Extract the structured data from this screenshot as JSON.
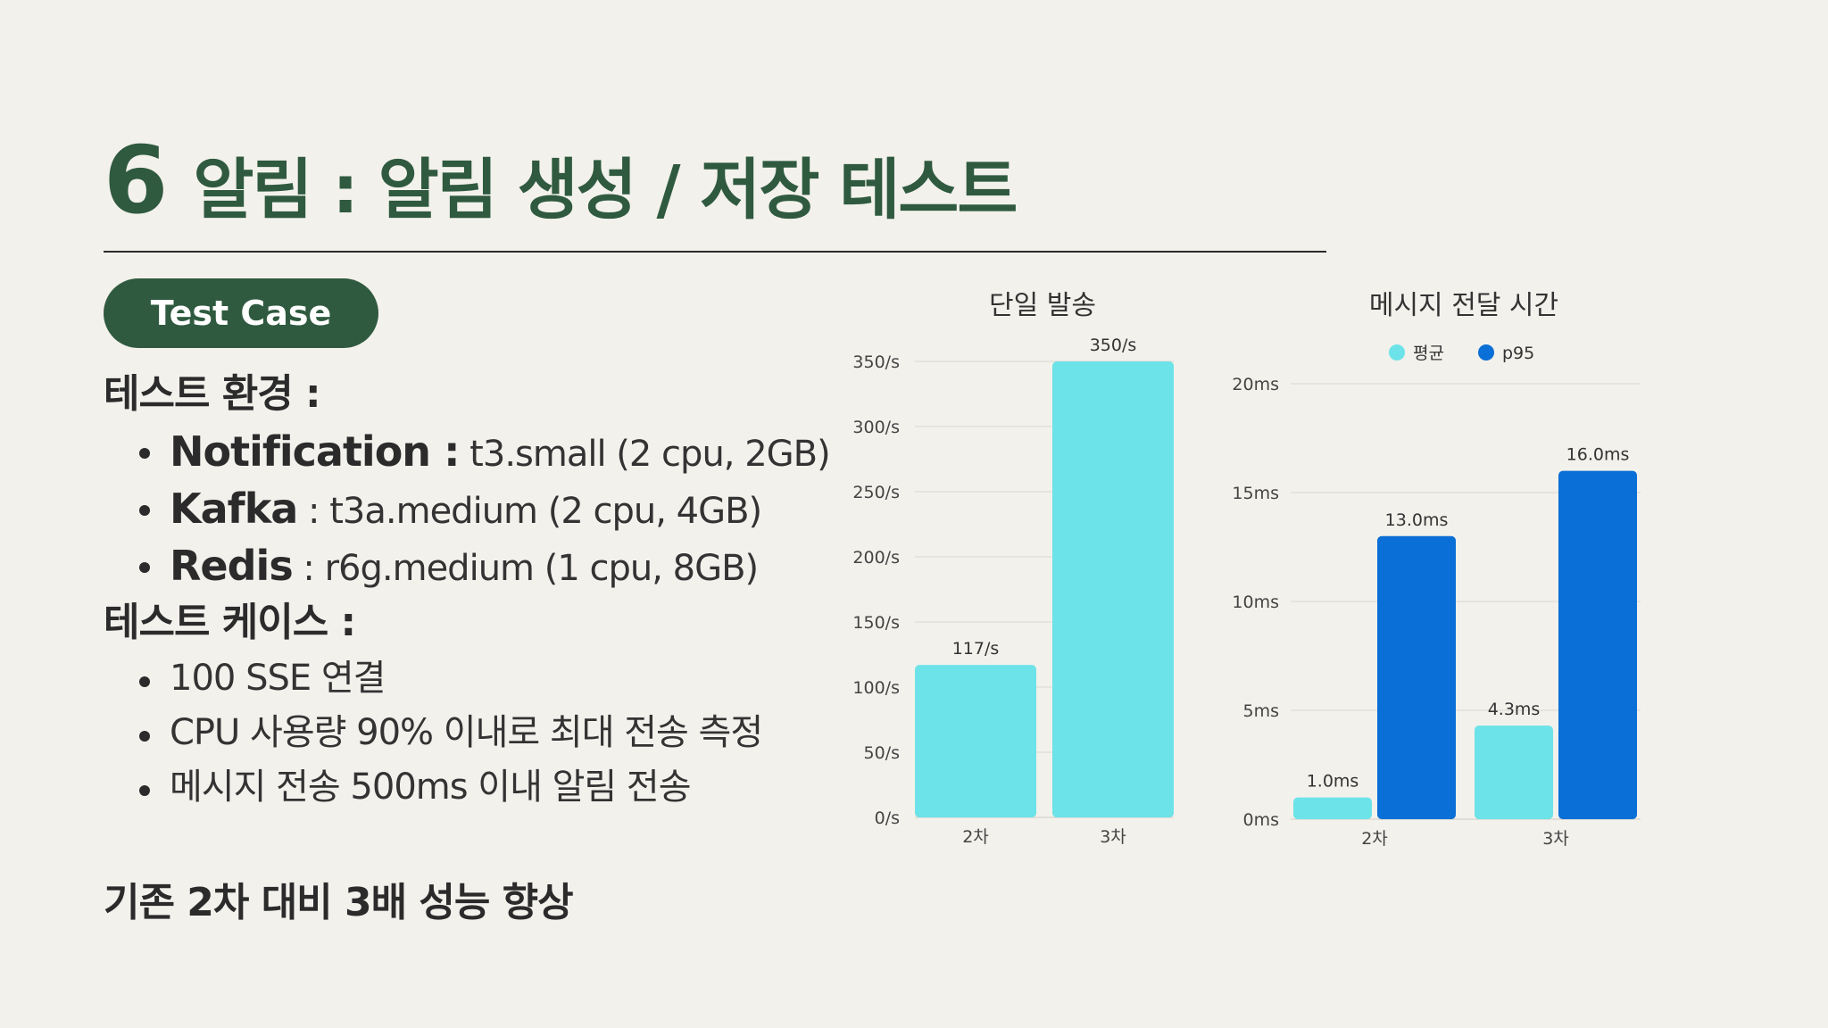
{
  "slide": {
    "number": "6",
    "title": "알림 : 알림 생성 / 저장 테스트",
    "badge": "Test Case",
    "env_heading": "테스트 환경 :",
    "env_items": [
      {
        "name": "Notification :",
        "value": " t3.small (2 cpu, 2GB)"
      },
      {
        "name": "Kafka",
        "value": " : t3a.medium (2 cpu, 4GB)"
      },
      {
        "name": "Redis",
        "value": " : r6g.medium (1 cpu, 8GB)"
      }
    ],
    "case_heading": "테스트 케이스 :",
    "case_items": [
      "100 SSE 연결",
      "CPU 사용량 90% 이내로 최대 전송 측정",
      "메시지 전송 500ms 이내 알림 전송"
    ],
    "conclusion": "기존 2차 대비 3배 성능 향상"
  },
  "colors": {
    "accent": "#2f5a3f",
    "background": "#f3f1ec",
    "bar_light": "#6ce3e8",
    "bar_dark": "#0a6fd6"
  },
  "chart_data": [
    {
      "type": "bar",
      "title": "단일 발송",
      "categories": [
        "2차",
        "3차"
      ],
      "values": [
        117,
        350
      ],
      "value_labels": [
        "117/s",
        "350/s"
      ],
      "ylim": [
        0,
        350
      ],
      "yticks": [
        0,
        50,
        100,
        150,
        200,
        250,
        300,
        350
      ],
      "ytick_labels": [
        "0/s",
        "50/s",
        "100/s",
        "150/s",
        "200/s",
        "250/s",
        "300/s",
        "350/s"
      ],
      "grid": true
    },
    {
      "type": "bar",
      "title": "메시지 전달 시간",
      "categories": [
        "2차",
        "3차"
      ],
      "series": [
        {
          "name": "평균",
          "values": [
            1.0,
            4.3
          ],
          "labels": [
            "1.0ms",
            "4.3ms"
          ]
        },
        {
          "name": "p95",
          "values": [
            13.0,
            16.0
          ],
          "labels": [
            "13.0ms",
            "16.0ms"
          ]
        }
      ],
      "ylim": [
        0,
        20
      ],
      "yticks": [
        0,
        5,
        10,
        15,
        20
      ],
      "ytick_labels": [
        "0ms",
        "5ms",
        "10ms",
        "15ms",
        "20ms"
      ],
      "legend": "top-center",
      "grid": true
    }
  ]
}
